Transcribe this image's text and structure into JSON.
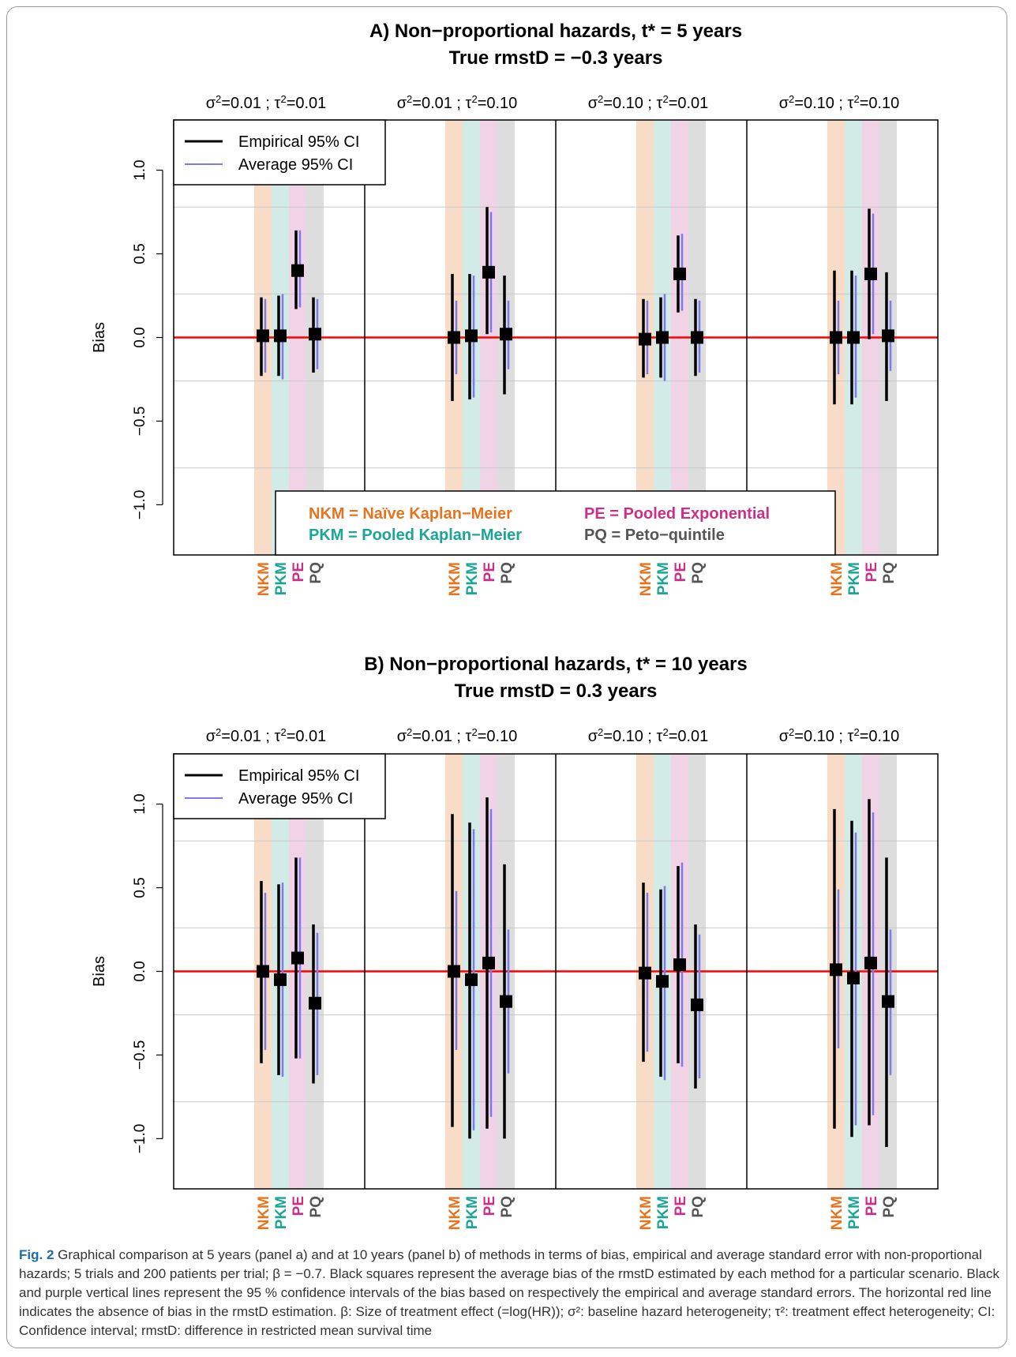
{
  "figure_label": "Fig. 2",
  "caption": "Graphical comparison at 5 years (panel a) and at 10 years (panel b) of methods in terms of bias, empirical and average standard error with non-proportional hazards; 5 trials and 200 patients per trial; β = −0.7. Black squares represent the average bias of the rmstD estimated by each method for a particular scenario. Black and purple vertical lines represent the 95 % confidence intervals of the bias based on respectively the empirical and average standard errors. The horizontal red line indicates the absence of bias in the rmstD estimation. β: Size of treatment effect (=log(HR)); σ²: baseline hazard heterogeneity; τ²: treatment effect heterogeneity; CI: Confidence interval; rmstD: difference in restricted mean survival time",
  "colors": {
    "NKM": "#e8731e",
    "PKM": "#1aa597",
    "PE": "#cc2f8a",
    "PQ": "#555555",
    "NKM_band": "#f9dcc8",
    "PKM_band": "#d3ebe6",
    "PE_band": "#f1d3e6",
    "PQ_band": "#dddddd",
    "empirical": "#000000",
    "average": "#7b7bea",
    "zero_line": "#ff0000"
  },
  "legend": {
    "empirical": "Empirical 95% CI",
    "average": "Average 95% CI"
  },
  "methods_legend": [
    {
      "code": "NKM",
      "text": "NKM = Naïve Kaplan−Meier"
    },
    {
      "code": "PE",
      "text": "PE = Pooled Exponential"
    },
    {
      "code": "PKM",
      "text": "PKM = Pooled Kaplan−Meier"
    },
    {
      "code": "PQ",
      "text": "PQ = Peto−quintile"
    }
  ],
  "chart_data": [
    {
      "type": "scatter",
      "title": "A) Non−proportional hazards, t* = 5 years",
      "subtitle": "True rmstD = −0.3 years",
      "ylabel": "Bias",
      "ylim": [
        -1.3,
        1.3
      ],
      "yticks": [
        "1.0",
        "0.5",
        "0.0",
        "−0.5",
        "−1.0"
      ],
      "ytick_values": [
        1.0,
        0.5,
        0.0,
        -0.5,
        -1.0
      ],
      "gridlines": [
        0.78,
        0.26,
        -0.26,
        -0.78
      ],
      "methods": [
        "NKM",
        "PKM",
        "PE",
        "PQ"
      ],
      "scenarios": [
        "σ²=0.01 ; τ²=0.01",
        "σ²=0.01 ; τ²=0.10",
        "σ²=0.10 ; τ²=0.01",
        "σ²=0.10 ; τ²=0.10"
      ],
      "series": [
        {
          "scenario": 0,
          "bias": [
            0.01,
            0.01,
            0.4,
            0.02
          ],
          "emp_low": [
            -0.23,
            -0.23,
            0.17,
            -0.21
          ],
          "emp_high": [
            0.24,
            0.25,
            0.64,
            0.24
          ],
          "avg_low": [
            -0.21,
            -0.25,
            0.18,
            -0.19
          ],
          "avg_high": [
            0.23,
            0.26,
            0.64,
            0.23
          ]
        },
        {
          "scenario": 1,
          "bias": [
            0.0,
            0.01,
            0.39,
            0.02
          ],
          "emp_low": [
            -0.38,
            -0.37,
            0.02,
            -0.34
          ],
          "emp_high": [
            0.38,
            0.38,
            0.78,
            0.37
          ],
          "avg_low": [
            -0.22,
            -0.36,
            0.03,
            -0.19
          ],
          "avg_high": [
            0.22,
            0.37,
            0.75,
            0.22
          ]
        },
        {
          "scenario": 2,
          "bias": [
            -0.01,
            0.0,
            0.38,
            0.0
          ],
          "emp_low": [
            -0.24,
            -0.24,
            0.15,
            -0.23
          ],
          "emp_high": [
            0.23,
            0.24,
            0.61,
            0.23
          ],
          "avg_low": [
            -0.22,
            -0.26,
            0.16,
            -0.21
          ],
          "avg_high": [
            0.22,
            0.26,
            0.62,
            0.22
          ]
        },
        {
          "scenario": 3,
          "bias": [
            0.0,
            0.0,
            0.38,
            0.01
          ],
          "emp_low": [
            -0.4,
            -0.4,
            -0.01,
            -0.38
          ],
          "emp_high": [
            0.4,
            0.4,
            0.77,
            0.39
          ],
          "avg_low": [
            -0.22,
            -0.36,
            0.02,
            -0.2
          ],
          "avg_high": [
            0.22,
            0.37,
            0.74,
            0.22
          ]
        }
      ]
    },
    {
      "type": "scatter",
      "title": "B) Non−proportional hazards, t* = 10 years",
      "subtitle": "True rmstD = 0.3 years",
      "ylabel": "Bias",
      "ylim": [
        -1.3,
        1.3
      ],
      "yticks": [
        "1.0",
        "0.5",
        "0.0",
        "−0.5",
        "−1.0"
      ],
      "ytick_values": [
        1.0,
        0.5,
        0.0,
        -0.5,
        -1.0
      ],
      "gridlines": [
        0.78,
        0.26,
        -0.26,
        -0.78
      ],
      "methods": [
        "NKM",
        "PKM",
        "PE",
        "PQ"
      ],
      "scenarios": [
        "σ²=0.01 ; τ²=0.01",
        "σ²=0.01 ; τ²=0.10",
        "σ²=0.10 ; τ²=0.01",
        "σ²=0.10 ; τ²=0.10"
      ],
      "series": [
        {
          "scenario": 0,
          "bias": [
            0.0,
            -0.05,
            0.08,
            -0.19
          ],
          "emp_low": [
            -0.55,
            -0.62,
            -0.52,
            -0.67
          ],
          "emp_high": [
            0.54,
            0.52,
            0.68,
            0.28
          ],
          "avg_low": [
            -0.47,
            -0.63,
            -0.52,
            -0.62
          ],
          "avg_high": [
            0.47,
            0.53,
            0.68,
            0.23
          ]
        },
        {
          "scenario": 1,
          "bias": [
            0.0,
            -0.05,
            0.05,
            -0.18
          ],
          "emp_low": [
            -0.93,
            -1.0,
            -0.94,
            -1.0
          ],
          "emp_high": [
            0.94,
            0.89,
            1.04,
            0.64
          ],
          "avg_low": [
            -0.47,
            -0.95,
            -0.87,
            -0.61
          ],
          "avg_high": [
            0.48,
            0.85,
            0.97,
            0.25
          ]
        },
        {
          "scenario": 2,
          "bias": [
            -0.01,
            -0.06,
            0.04,
            -0.2
          ],
          "emp_low": [
            -0.54,
            -0.63,
            -0.55,
            -0.7
          ],
          "emp_high": [
            0.53,
            0.49,
            0.63,
            0.28
          ],
          "avg_low": [
            -0.48,
            -0.65,
            -0.57,
            -0.64
          ],
          "avg_high": [
            0.47,
            0.51,
            0.65,
            0.22
          ]
        },
        {
          "scenario": 3,
          "bias": [
            0.01,
            -0.04,
            0.05,
            -0.18
          ],
          "emp_low": [
            -0.94,
            -0.99,
            -0.92,
            -1.05
          ],
          "emp_high": [
            0.97,
            0.9,
            1.03,
            0.68
          ],
          "avg_low": [
            -0.46,
            -0.92,
            -0.86,
            -0.62
          ],
          "avg_high": [
            0.49,
            0.83,
            0.95,
            0.25
          ]
        }
      ]
    }
  ]
}
